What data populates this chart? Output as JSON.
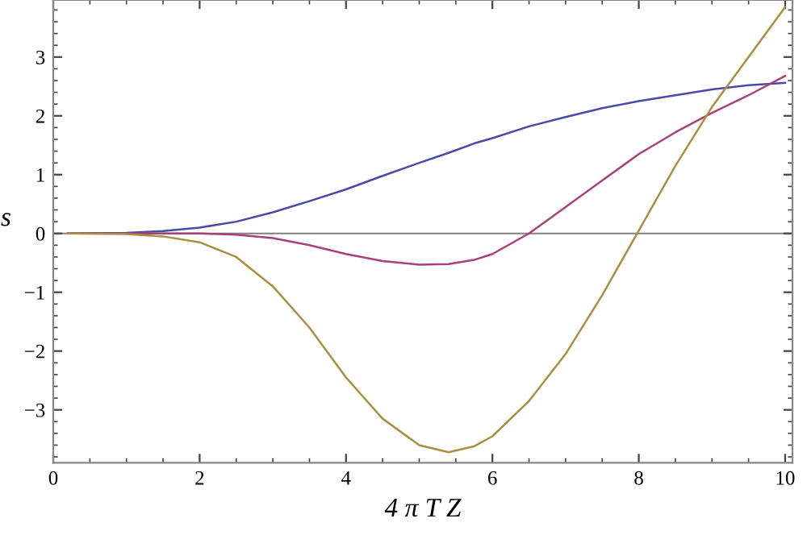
{
  "chart_data": {
    "type": "line",
    "xlabel": "4 π T Z",
    "ylabel": "s",
    "x": [
      0.2,
      1,
      1.5,
      2,
      2.5,
      3,
      3.5,
      4,
      4.5,
      5,
      5.4,
      5.75,
      6,
      6.5,
      7,
      7.5,
      8,
      8.5,
      9,
      9.5,
      10
    ],
    "series": [
      {
        "color": "#4a4aa8",
        "values": [
          0,
          0.01,
          0.04,
          0.1,
          0.2,
          0.36,
          0.55,
          0.75,
          0.98,
          1.2,
          1.37,
          1.53,
          1.62,
          1.82,
          1.98,
          2.13,
          2.25,
          2.35,
          2.45,
          2.52,
          2.56
        ]
      },
      {
        "color": "#a8407a",
        "values": [
          0,
          0,
          0,
          0,
          -0.02,
          -0.08,
          -0.2,
          -0.35,
          -0.47,
          -0.53,
          -0.52,
          -0.45,
          -0.35,
          0,
          0.45,
          0.9,
          1.35,
          1.72,
          2.05,
          2.35,
          2.68
        ]
      },
      {
        "color": "#a89040",
        "values": [
          0,
          -0.01,
          -0.05,
          -0.15,
          -0.4,
          -0.9,
          -1.6,
          -2.45,
          -3.15,
          -3.6,
          -3.72,
          -3.62,
          -3.45,
          -2.85,
          -2.05,
          -1.05,
          0.05,
          1.15,
          2.15,
          3.0,
          3.85
        ]
      }
    ],
    "xlim": [
      0,
      10.1
    ],
    "ylim": [
      -3.9,
      3.97
    ],
    "xticks": [
      0,
      2,
      4,
      6,
      8,
      10
    ],
    "yticks": [
      -3,
      -2,
      -1,
      0,
      1,
      2,
      3
    ],
    "ref_lines": [
      {
        "axis": "y",
        "value": 0,
        "color": "#808080"
      }
    ],
    "grid": false,
    "legend": false,
    "marker": "none",
    "line_style": "solid"
  }
}
